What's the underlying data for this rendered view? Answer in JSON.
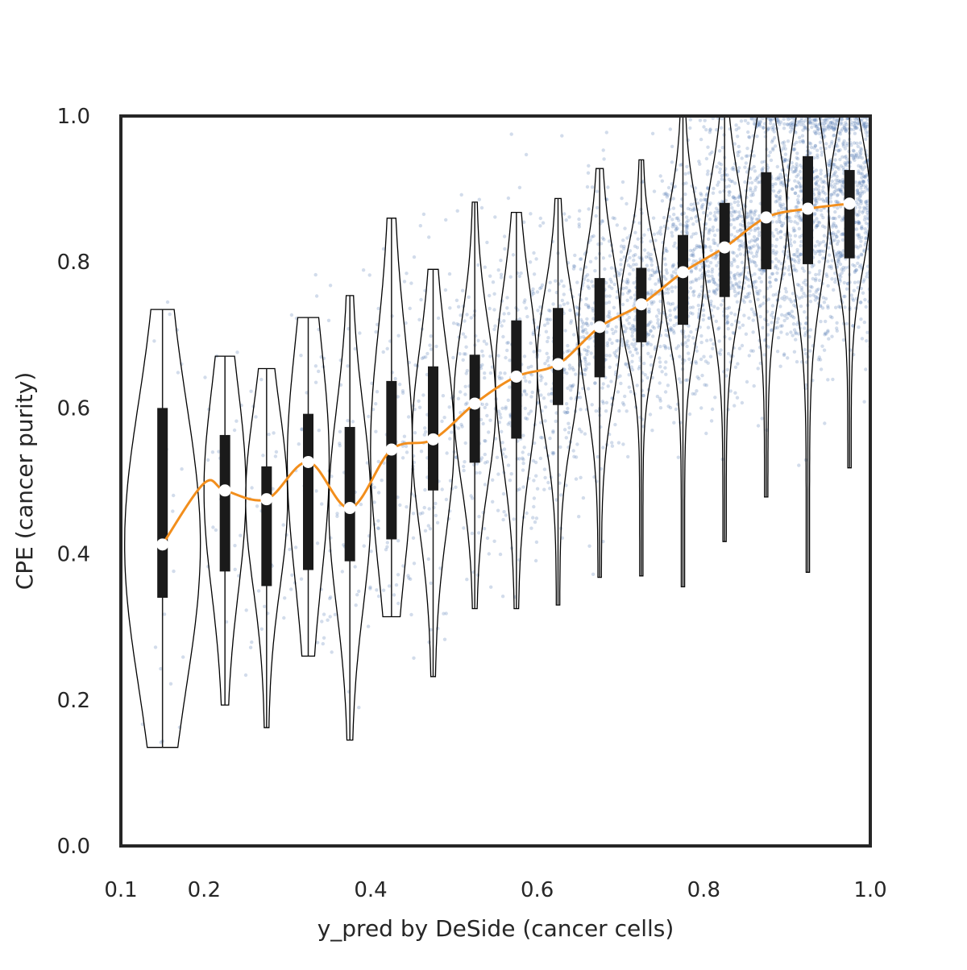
{
  "chart_data": {
    "type": "violin",
    "title": "",
    "xlabel": "y_pred by DeSide (cancer cells)",
    "ylabel": "CPE (cancer purity)",
    "xlim": [
      0.1,
      1.0
    ],
    "ylim": [
      0.0,
      1.0
    ],
    "x_ticks": [
      "0.1",
      "0.2",
      "0.4",
      "0.6",
      "0.8",
      "1.0"
    ],
    "y_ticks": [
      "0.0",
      "0.2",
      "0.4",
      "0.6",
      "0.8",
      "1.0"
    ],
    "grid": false,
    "legend": "none",
    "colors": {
      "scatter": "#4c72b0",
      "median_line": "#f28e1c",
      "violin_edge": "#000000",
      "box": "#1a1a1a",
      "median_marker": "#ffffff",
      "frame": "#262626"
    },
    "violins": [
      {
        "x": 0.15,
        "min": 0.135,
        "max": 0.735,
        "q1": 0.34,
        "median": 0.413,
        "q3": 0.6
      },
      {
        "x": 0.225,
        "min": 0.193,
        "max": 0.671,
        "q1": 0.376,
        "median": 0.487,
        "q3": 0.563
      },
      {
        "x": 0.275,
        "min": 0.162,
        "max": 0.654,
        "q1": 0.356,
        "median": 0.475,
        "q3": 0.52
      },
      {
        "x": 0.325,
        "min": 0.26,
        "max": 0.724,
        "q1": 0.378,
        "median": 0.526,
        "q3": 0.592
      },
      {
        "x": 0.375,
        "min": 0.145,
        "max": 0.754,
        "q1": 0.39,
        "median": 0.463,
        "q3": 0.574
      },
      {
        "x": 0.425,
        "min": 0.314,
        "max": 0.86,
        "q1": 0.42,
        "median": 0.543,
        "q3": 0.637
      },
      {
        "x": 0.475,
        "min": 0.232,
        "max": 0.79,
        "q1": 0.487,
        "median": 0.557,
        "q3": 0.657
      },
      {
        "x": 0.525,
        "min": 0.325,
        "max": 0.882,
        "q1": 0.525,
        "median": 0.606,
        "q3": 0.673
      },
      {
        "x": 0.575,
        "min": 0.325,
        "max": 0.868,
        "q1": 0.558,
        "median": 0.643,
        "q3": 0.72
      },
      {
        "x": 0.625,
        "min": 0.33,
        "max": 0.887,
        "q1": 0.604,
        "median": 0.66,
        "q3": 0.737
      },
      {
        "x": 0.675,
        "min": 0.368,
        "max": 0.928,
        "q1": 0.642,
        "median": 0.711,
        "q3": 0.778
      },
      {
        "x": 0.725,
        "min": 0.37,
        "max": 0.94,
        "q1": 0.69,
        "median": 0.742,
        "q3": 0.792
      },
      {
        "x": 0.775,
        "min": 0.355,
        "max": 1.0,
        "q1": 0.714,
        "median": 0.786,
        "q3": 0.837
      },
      {
        "x": 0.825,
        "min": 0.417,
        "max": 1.0,
        "q1": 0.752,
        "median": 0.82,
        "q3": 0.881
      },
      {
        "x": 0.875,
        "min": 0.478,
        "max": 1.0,
        "q1": 0.79,
        "median": 0.861,
        "q3": 0.923
      },
      {
        "x": 0.925,
        "min": 0.375,
        "max": 1.0,
        "q1": 0.797,
        "median": 0.873,
        "q3": 0.945
      },
      {
        "x": 0.975,
        "min": 0.518,
        "max": 1.0,
        "q1": 0.805,
        "median": 0.88,
        "q3": 0.926
      }
    ],
    "smooth_median_line": {
      "x": [
        0.15,
        0.2,
        0.225,
        0.275,
        0.325,
        0.375,
        0.425,
        0.475,
        0.525,
        0.575,
        0.625,
        0.675,
        0.725,
        0.775,
        0.825,
        0.875,
        0.925,
        0.975
      ],
      "y": [
        0.413,
        0.497,
        0.487,
        0.475,
        0.526,
        0.463,
        0.543,
        0.557,
        0.606,
        0.643,
        0.66,
        0.711,
        0.742,
        0.786,
        0.82,
        0.861,
        0.873,
        0.88
      ]
    },
    "scatter": {
      "description_hidden": false,
      "alpha": 0.25
    }
  }
}
